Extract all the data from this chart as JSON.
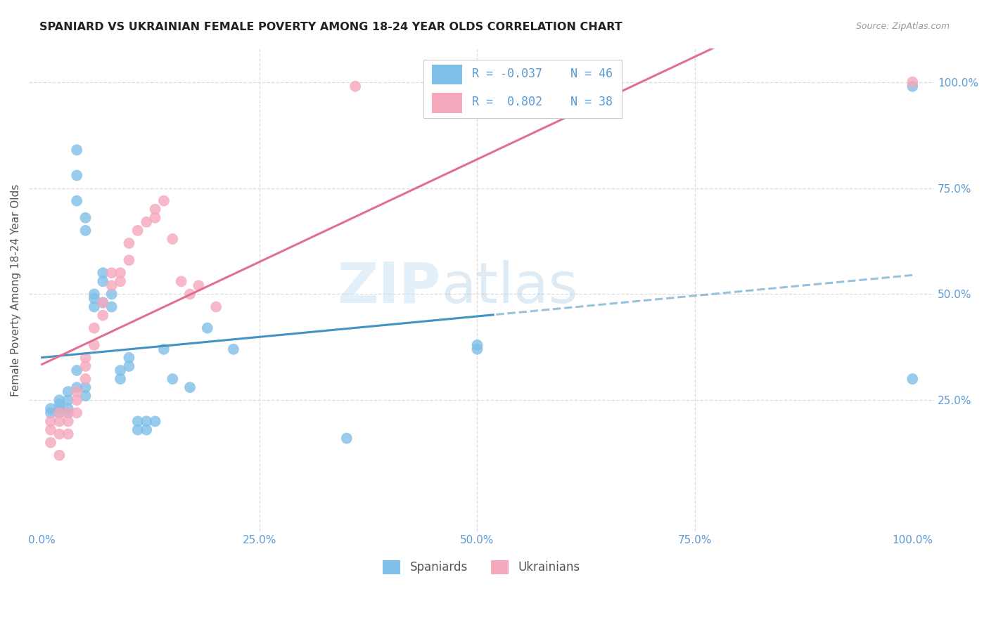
{
  "title": "SPANIARD VS UKRAINIAN FEMALE POVERTY AMONG 18-24 YEAR OLDS CORRELATION CHART",
  "source": "Source: ZipAtlas.com",
  "ylabel": "Female Poverty Among 18-24 Year Olds",
  "watermark_zip": "ZIP",
  "watermark_atlas": "atlas",
  "legend_r_blue": "R = -0.037",
  "legend_n_blue": "N = 46",
  "legend_r_pink": "R =  0.802",
  "legend_n_pink": "N = 38",
  "blue_color": "#7fbfe8",
  "pink_color": "#f5a8bc",
  "line_blue": "#4292c6",
  "line_pink": "#e07090",
  "axis_label_color": "#5b9bd5",
  "blue_x": [
    0.01,
    0.01,
    0.02,
    0.02,
    0.02,
    0.02,
    0.03,
    0.03,
    0.03,
    0.03,
    0.04,
    0.04,
    0.04,
    0.04,
    0.04,
    0.05,
    0.05,
    0.05,
    0.05,
    0.06,
    0.06,
    0.06,
    0.07,
    0.07,
    0.07,
    0.08,
    0.08,
    0.09,
    0.09,
    0.1,
    0.1,
    0.11,
    0.11,
    0.12,
    0.12,
    0.13,
    0.14,
    0.15,
    0.17,
    0.19,
    0.22,
    0.35,
    0.5,
    0.5,
    1.0,
    1.0
  ],
  "blue_y": [
    0.22,
    0.23,
    0.22,
    0.23,
    0.24,
    0.25,
    0.22,
    0.23,
    0.25,
    0.27,
    0.84,
    0.78,
    0.72,
    0.32,
    0.28,
    0.65,
    0.68,
    0.28,
    0.26,
    0.49,
    0.47,
    0.5,
    0.53,
    0.55,
    0.48,
    0.47,
    0.5,
    0.32,
    0.3,
    0.35,
    0.33,
    0.2,
    0.18,
    0.2,
    0.18,
    0.2,
    0.37,
    0.3,
    0.28,
    0.42,
    0.37,
    0.16,
    0.37,
    0.38,
    0.3,
    0.99
  ],
  "pink_x": [
    0.01,
    0.01,
    0.01,
    0.02,
    0.02,
    0.02,
    0.02,
    0.03,
    0.03,
    0.03,
    0.04,
    0.04,
    0.04,
    0.05,
    0.05,
    0.05,
    0.06,
    0.06,
    0.07,
    0.07,
    0.08,
    0.08,
    0.09,
    0.09,
    0.1,
    0.1,
    0.11,
    0.12,
    0.13,
    0.13,
    0.14,
    0.15,
    0.16,
    0.17,
    0.18,
    0.2,
    0.36,
    1.0
  ],
  "pink_y": [
    0.2,
    0.18,
    0.15,
    0.22,
    0.2,
    0.17,
    0.12,
    0.22,
    0.2,
    0.17,
    0.27,
    0.25,
    0.22,
    0.35,
    0.33,
    0.3,
    0.42,
    0.38,
    0.48,
    0.45,
    0.55,
    0.52,
    0.55,
    0.53,
    0.62,
    0.58,
    0.65,
    0.67,
    0.7,
    0.68,
    0.72,
    0.63,
    0.53,
    0.5,
    0.52,
    0.47,
    0.99,
    1.0
  ]
}
